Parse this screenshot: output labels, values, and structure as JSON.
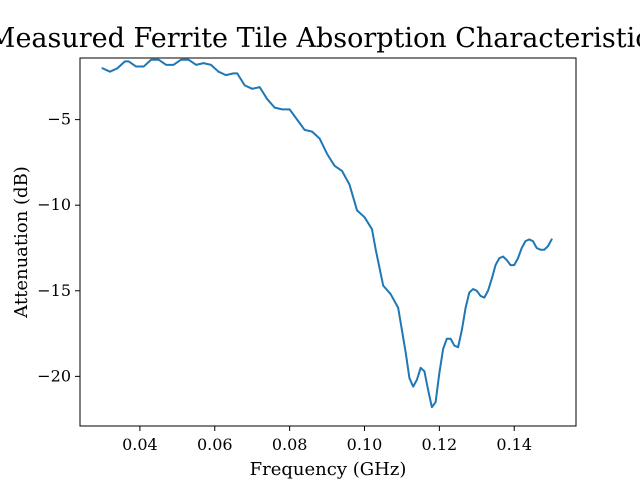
{
  "chart_data": {
    "type": "line",
    "title": "Measured Ferrite Tile Absorption Characteristics",
    "xlabel": "Frequency (GHz)",
    "ylabel": "Attenuation (dB)",
    "xlim": [
      0.024,
      0.1565
    ],
    "ylim": [
      -22.9,
      -1.4
    ],
    "xticks": [
      0.04,
      0.06,
      0.08,
      0.1,
      0.12,
      0.14
    ],
    "xtick_labels": [
      "0.04",
      "0.06",
      "0.08",
      "0.10",
      "0.12",
      "0.14"
    ],
    "yticks": [
      -5,
      -10,
      -15,
      -20
    ],
    "ytick_labels": [
      "−5",
      "−10",
      "−15",
      "−20"
    ],
    "grid": false,
    "series": [
      {
        "color": "#1f77b4",
        "x": [
          0.03,
          0.032,
          0.034,
          0.036,
          0.037,
          0.039,
          0.041,
          0.043,
          0.045,
          0.047,
          0.049,
          0.051,
          0.053,
          0.055,
          0.057,
          0.059,
          0.061,
          0.063,
          0.065,
          0.066,
          0.068,
          0.07,
          0.072,
          0.074,
          0.076,
          0.078,
          0.08,
          0.082,
          0.084,
          0.086,
          0.088,
          0.09,
          0.092,
          0.094,
          0.096,
          0.098,
          0.1,
          0.102,
          0.103,
          0.105,
          0.107,
          0.109,
          0.111,
          0.112,
          0.113,
          0.114,
          0.115,
          0.116,
          0.117,
          0.118,
          0.119,
          0.12,
          0.121,
          0.122,
          0.123,
          0.124,
          0.125,
          0.126,
          0.127,
          0.128,
          0.129,
          0.13,
          0.131,
          0.132,
          0.133,
          0.134,
          0.135,
          0.136,
          0.137,
          0.138,
          0.139,
          0.14,
          0.141,
          0.142,
          0.143,
          0.144,
          0.145,
          0.146,
          0.147,
          0.148,
          0.149,
          0.15
        ],
        "y": [
          -2.0,
          -2.2,
          -2.0,
          -1.6,
          -1.6,
          -1.9,
          -1.9,
          -1.5,
          -1.5,
          -1.8,
          -1.8,
          -1.5,
          -1.5,
          -1.8,
          -1.7,
          -1.8,
          -2.2,
          -2.4,
          -2.3,
          -2.3,
          -3.0,
          -3.2,
          -3.1,
          -3.8,
          -4.3,
          -4.4,
          -4.4,
          -5.0,
          -5.6,
          -5.7,
          -6.1,
          -7.0,
          -7.7,
          -8.0,
          -8.8,
          -10.3,
          -10.7,
          -11.4,
          -12.6,
          -14.7,
          -15.2,
          -16.0,
          -18.6,
          -20.1,
          -20.6,
          -20.2,
          -19.5,
          -19.7,
          -20.8,
          -21.8,
          -21.5,
          -19.8,
          -18.4,
          -17.8,
          -17.8,
          -18.2,
          -18.3,
          -17.3,
          -16.0,
          -15.1,
          -14.9,
          -15.0,
          -15.3,
          -15.4,
          -15.0,
          -14.3,
          -13.5,
          -13.1,
          -13.0,
          -13.2,
          -13.5,
          -13.5,
          -13.1,
          -12.5,
          -12.1,
          -12.0,
          -12.1,
          -12.5,
          -12.6,
          -12.6,
          -12.4,
          -12.0
        ]
      }
    ]
  }
}
